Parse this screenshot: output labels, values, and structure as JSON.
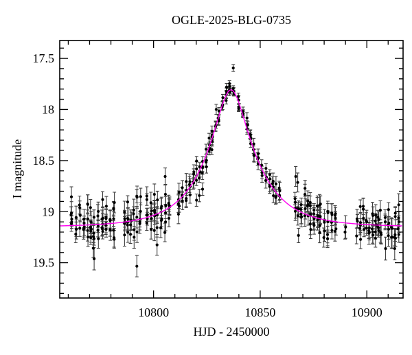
{
  "title": "OGLE-2025-BLG-0735",
  "axes": {
    "x": {
      "label": "HJD - 2450000",
      "major_labels": [
        "10800",
        "10850",
        "10900"
      ]
    },
    "y": {
      "label": "I magnitude",
      "major_labels": [
        "17.5",
        "18",
        "18.5",
        "19",
        "19.5"
      ]
    }
  },
  "colors": {
    "background": "#ffffff",
    "frame": "#000000",
    "marker": "#000000",
    "errorbar": "#2a2a2a",
    "model_curve": "#ff00f0"
  },
  "chart_data": {
    "type": "scatter",
    "title": "OGLE-2025-BLG-0735",
    "xlabel": "HJD - 2450000",
    "ylabel": "I magnitude",
    "xlim": [
      10756,
      10917
    ],
    "ylim_top_to_bottom": [
      17.325,
      19.845
    ],
    "x_major_ticks": [
      10800,
      10850,
      10900
    ],
    "x_minor_step": 10,
    "y_major_ticks": [
      17.5,
      18.0,
      18.5,
      19.0,
      19.5
    ],
    "y_minor_step": 0.1,
    "y_axis_inverted_magnitude": true,
    "grid": false,
    "legend": false,
    "model_curve": {
      "kind": "paczynski_microlensing",
      "t0": 10836.3,
      "tE": 23.0,
      "u0": 0.3,
      "baseline_mag": 19.15,
      "peak_mag_approx": 17.78,
      "sample_step_days": 0.75,
      "color": "#ff00f0"
    },
    "observed_points": {
      "description": "OGLE I-band photometry: ~400 points in nightly groups with error bars, scattered about the microlensing model",
      "seed": 20250735,
      "windows": [
        {
          "t_start": 10761.5,
          "t_end": 10782.0,
          "night_spacing": 1.7,
          "obs_per_night": [
            4,
            7
          ]
        },
        {
          "t_start": 10786.0,
          "t_end": 10795.0,
          "night_spacing": 1.5,
          "obs_per_night": [
            4,
            6
          ]
        },
        {
          "t_start": 10797.0,
          "t_end": 10808.0,
          "night_spacing": 1.6,
          "obs_per_night": [
            4,
            6
          ]
        },
        {
          "t_start": 10811.5,
          "t_end": 10838.5,
          "night_spacing": 1.6,
          "obs_per_night": [
            4,
            7
          ]
        },
        {
          "t_start": 10839.5,
          "t_end": 10860.0,
          "night_spacing": 1.7,
          "obs_per_night": [
            3,
            5
          ]
        },
        {
          "t_start": 10866.0,
          "t_end": 10885.5,
          "night_spacing": 1.6,
          "obs_per_night": [
            4,
            7
          ]
        },
        {
          "t_start": 10889.5,
          "t_end": 10890.3,
          "night_spacing": 2.0,
          "obs_per_night": [
            1,
            2
          ]
        },
        {
          "t_start": 10895.0,
          "t_end": 10907.0,
          "night_spacing": 1.5,
          "obs_per_night": [
            3,
            5
          ]
        },
        {
          "t_start": 10908.5,
          "t_end": 10916.3,
          "night_spacing": 1.5,
          "obs_per_night": [
            4,
            6
          ]
        }
      ],
      "err_model": {
        "base": 0.026,
        "slope_per_mag": 0.35,
        "ref_mag": 17.8
      },
      "noise_sigma_factor": 1.1,
      "outlier_fraction": 0.06,
      "marker_color": "#000000",
      "errorbar_color": "#2a2a2a"
    }
  }
}
